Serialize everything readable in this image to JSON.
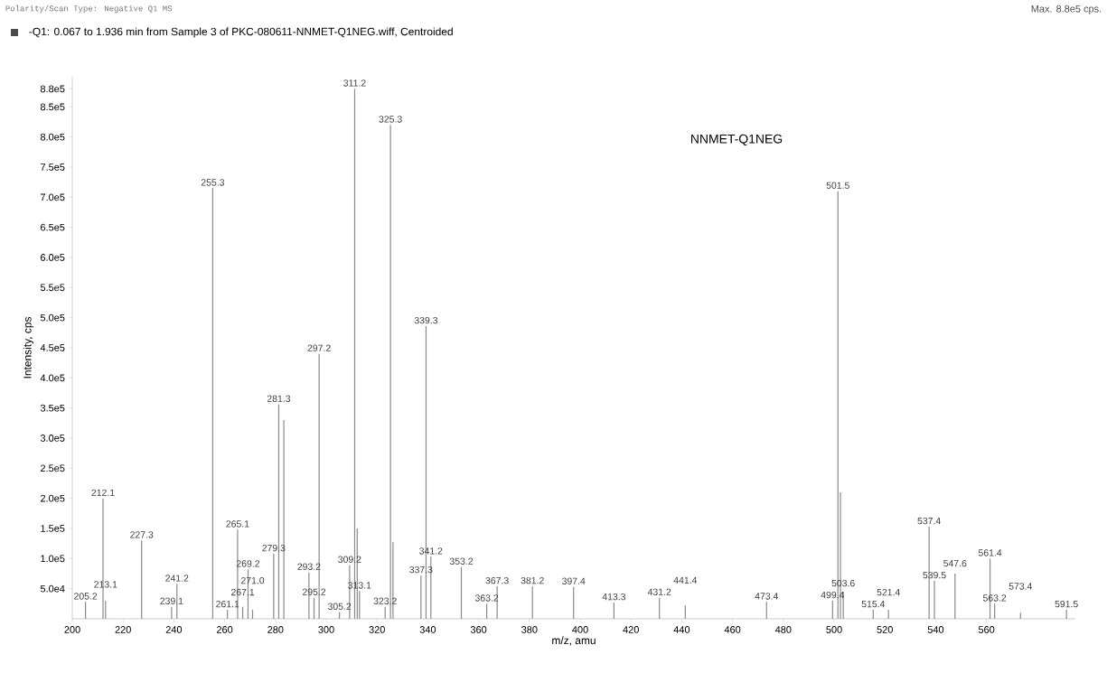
{
  "chart_data": {
    "type": "bar",
    "title": "-Q1: 0.067 to 1.936 min from Sample 3 of PKC-080611-NNMET-Q1NEG.wiff, Centroided",
    "subtitle": "Polarity/Scan Type: Negative Q1 MS",
    "xlabel": "m/z, amu",
    "ylabel": "Intensity, cps",
    "series": [
      {
        "color": "#8a8a8a",
        "x": [
          205.2,
          212.1,
          213.1,
          227.3,
          239.1,
          241.2,
          255.3,
          261.1,
          265.1,
          267.1,
          269.2,
          271.0,
          279.3,
          281.3,
          283.3,
          293.2,
          295.2,
          297.2,
          305.2,
          309.2,
          311.2,
          312.2,
          313.1,
          323.2,
          325.3,
          326.3,
          337.3,
          339.3,
          341.2,
          353.2,
          363.2,
          367.3,
          381.2,
          397.4,
          413.3,
          431.2,
          441.4,
          473.4,
          499.4,
          501.5,
          502.5,
          503.6,
          515.4,
          521.4,
          537.4,
          539.5,
          547.6,
          561.4,
          563.2,
          573.4,
          591.5
        ],
        "values": [
          28000,
          200000,
          30000,
          130000,
          20000,
          58000,
          715000,
          15000,
          148000,
          20000,
          82000,
          15000,
          108000,
          356000,
          330000,
          77000,
          35000,
          440000,
          11000,
          89000,
          880000,
          150000,
          46000,
          20000,
          820000,
          127000,
          72000,
          486000,
          103000,
          86000,
          25000,
          54000,
          54000,
          53000,
          27000,
          35000,
          22000,
          28000,
          30000,
          710000,
          210000,
          45000,
          15000,
          15000,
          153000,
          63000,
          75000,
          100000,
          25000,
          10000,
          15000
        ]
      }
    ],
    "xlim": [
      200,
      595
    ],
    "xticks": [
      200,
      220,
      240,
      260,
      280,
      300,
      320,
      340,
      360,
      380,
      400,
      420,
      440,
      460,
      480,
      500,
      520,
      540,
      560
    ],
    "ylim": [
      0,
      900000
    ],
    "yticks": [
      {
        "value": 50000,
        "label": "5.0e4"
      },
      {
        "value": 100000,
        "label": "1.0e5"
      },
      {
        "value": 150000,
        "label": "1.5e5"
      },
      {
        "value": 200000,
        "label": "2.0e5"
      },
      {
        "value": 250000,
        "label": "2.5e5"
      },
      {
        "value": 300000,
        "label": "3.0e5"
      },
      {
        "value": 350000,
        "label": "3.5e5"
      },
      {
        "value": 400000,
        "label": "4.0e5"
      },
      {
        "value": 450000,
        "label": "4.5e5"
      },
      {
        "value": 500000,
        "label": "5.0e5"
      },
      {
        "value": 550000,
        "label": "5.5e5"
      },
      {
        "value": 600000,
        "label": "6.0e5"
      },
      {
        "value": 650000,
        "label": "6.5e5"
      },
      {
        "value": 700000,
        "label": "7.0e5"
      },
      {
        "value": 750000,
        "label": "7.5e5"
      },
      {
        "value": 800000,
        "label": "8.0e5"
      },
      {
        "value": 850000,
        "label": "8.5e5"
      },
      {
        "value": 880000,
        "label": "8.8e5"
      }
    ],
    "annotations": [
      "NNMET-Q1NEG",
      "Max. 8.8e5 cps.",
      {
        "text": "205.2",
        "x": 205.2,
        "y": 28000
      },
      {
        "text": "212.1",
        "x": 212.1,
        "y": 200000
      },
      {
        "text": "213.1",
        "x": 213.1,
        "y": 30000
      },
      {
        "text": "227.3",
        "x": 227.3,
        "y": 130000
      },
      {
        "text": "239.1",
        "x": 239.1,
        "y": 20000
      },
      {
        "text": "241.2",
        "x": 241.2,
        "y": 58000
      },
      {
        "text": "255.3",
        "x": 255.3,
        "y": 715000
      },
      {
        "text": "261.1",
        "x": 261.1,
        "y": 15000
      },
      {
        "text": "265.1",
        "x": 265.1,
        "y": 148000
      },
      {
        "text": "267.1",
        "x": 267.1,
        "y": 20000
      },
      {
        "text": "269.2",
        "x": 269.2,
        "y": 82000
      },
      {
        "text": "271.0",
        "x": 271.0,
        "y": 15000
      },
      {
        "text": "279.3",
        "x": 279.3,
        "y": 108000
      },
      {
        "text": "281.3",
        "x": 281.3,
        "y": 356000
      },
      {
        "text": "293.2",
        "x": 293.2,
        "y": 77000
      },
      {
        "text": "295.2",
        "x": 295.2,
        "y": 35000
      },
      {
        "text": "297.2",
        "x": 297.2,
        "y": 440000
      },
      {
        "text": "305.2",
        "x": 305.2,
        "y": 11000
      },
      {
        "text": "309.2",
        "x": 309.2,
        "y": 89000
      },
      {
        "text": "311.2",
        "x": 311.2,
        "y": 880000
      },
      {
        "text": "313.1",
        "x": 313.1,
        "y": 46000
      },
      {
        "text": "323.2",
        "x": 323.2,
        "y": 20000
      },
      {
        "text": "325.3",
        "x": 325.3,
        "y": 820000
      },
      {
        "text": "337.3",
        "x": 337.3,
        "y": 72000
      },
      {
        "text": "339.3",
        "x": 339.3,
        "y": 486000
      },
      {
        "text": "341.2",
        "x": 341.2,
        "y": 103000
      },
      {
        "text": "353.2",
        "x": 353.2,
        "y": 86000
      },
      {
        "text": "363.2",
        "x": 363.2,
        "y": 25000
      },
      {
        "text": "367.3",
        "x": 367.3,
        "y": 54000
      },
      {
        "text": "381.2",
        "x": 381.2,
        "y": 54000
      },
      {
        "text": "397.4",
        "x": 397.4,
        "y": 53000
      },
      {
        "text": "413.3",
        "x": 413.3,
        "y": 27000
      },
      {
        "text": "431.2",
        "x": 431.2,
        "y": 35000
      },
      {
        "text": "441.4",
        "x": 441.4,
        "y": 22000
      },
      {
        "text": "473.4",
        "x": 473.4,
        "y": 28000
      },
      {
        "text": "499.4",
        "x": 499.4,
        "y": 30000
      },
      {
        "text": "501.5",
        "x": 501.5,
        "y": 710000
      },
      {
        "text": "503.6",
        "x": 503.6,
        "y": 45000
      },
      {
        "text": "515.4",
        "x": 515.4,
        "y": 15000
      },
      {
        "text": "521.4",
        "x": 521.4,
        "y": 15000
      },
      {
        "text": "537.4",
        "x": 537.4,
        "y": 153000
      },
      {
        "text": "539.5",
        "x": 539.5,
        "y": 63000
      },
      {
        "text": "547.6",
        "x": 547.6,
        "y": 75000
      },
      {
        "text": "561.4",
        "x": 561.4,
        "y": 100000
      },
      {
        "text": "563.2",
        "x": 563.2,
        "y": 25000
      },
      {
        "text": "573.4",
        "x": 573.4,
        "y": 10000
      },
      {
        "text": "591.5",
        "x": 591.5,
        "y": 15000
      }
    ]
  }
}
